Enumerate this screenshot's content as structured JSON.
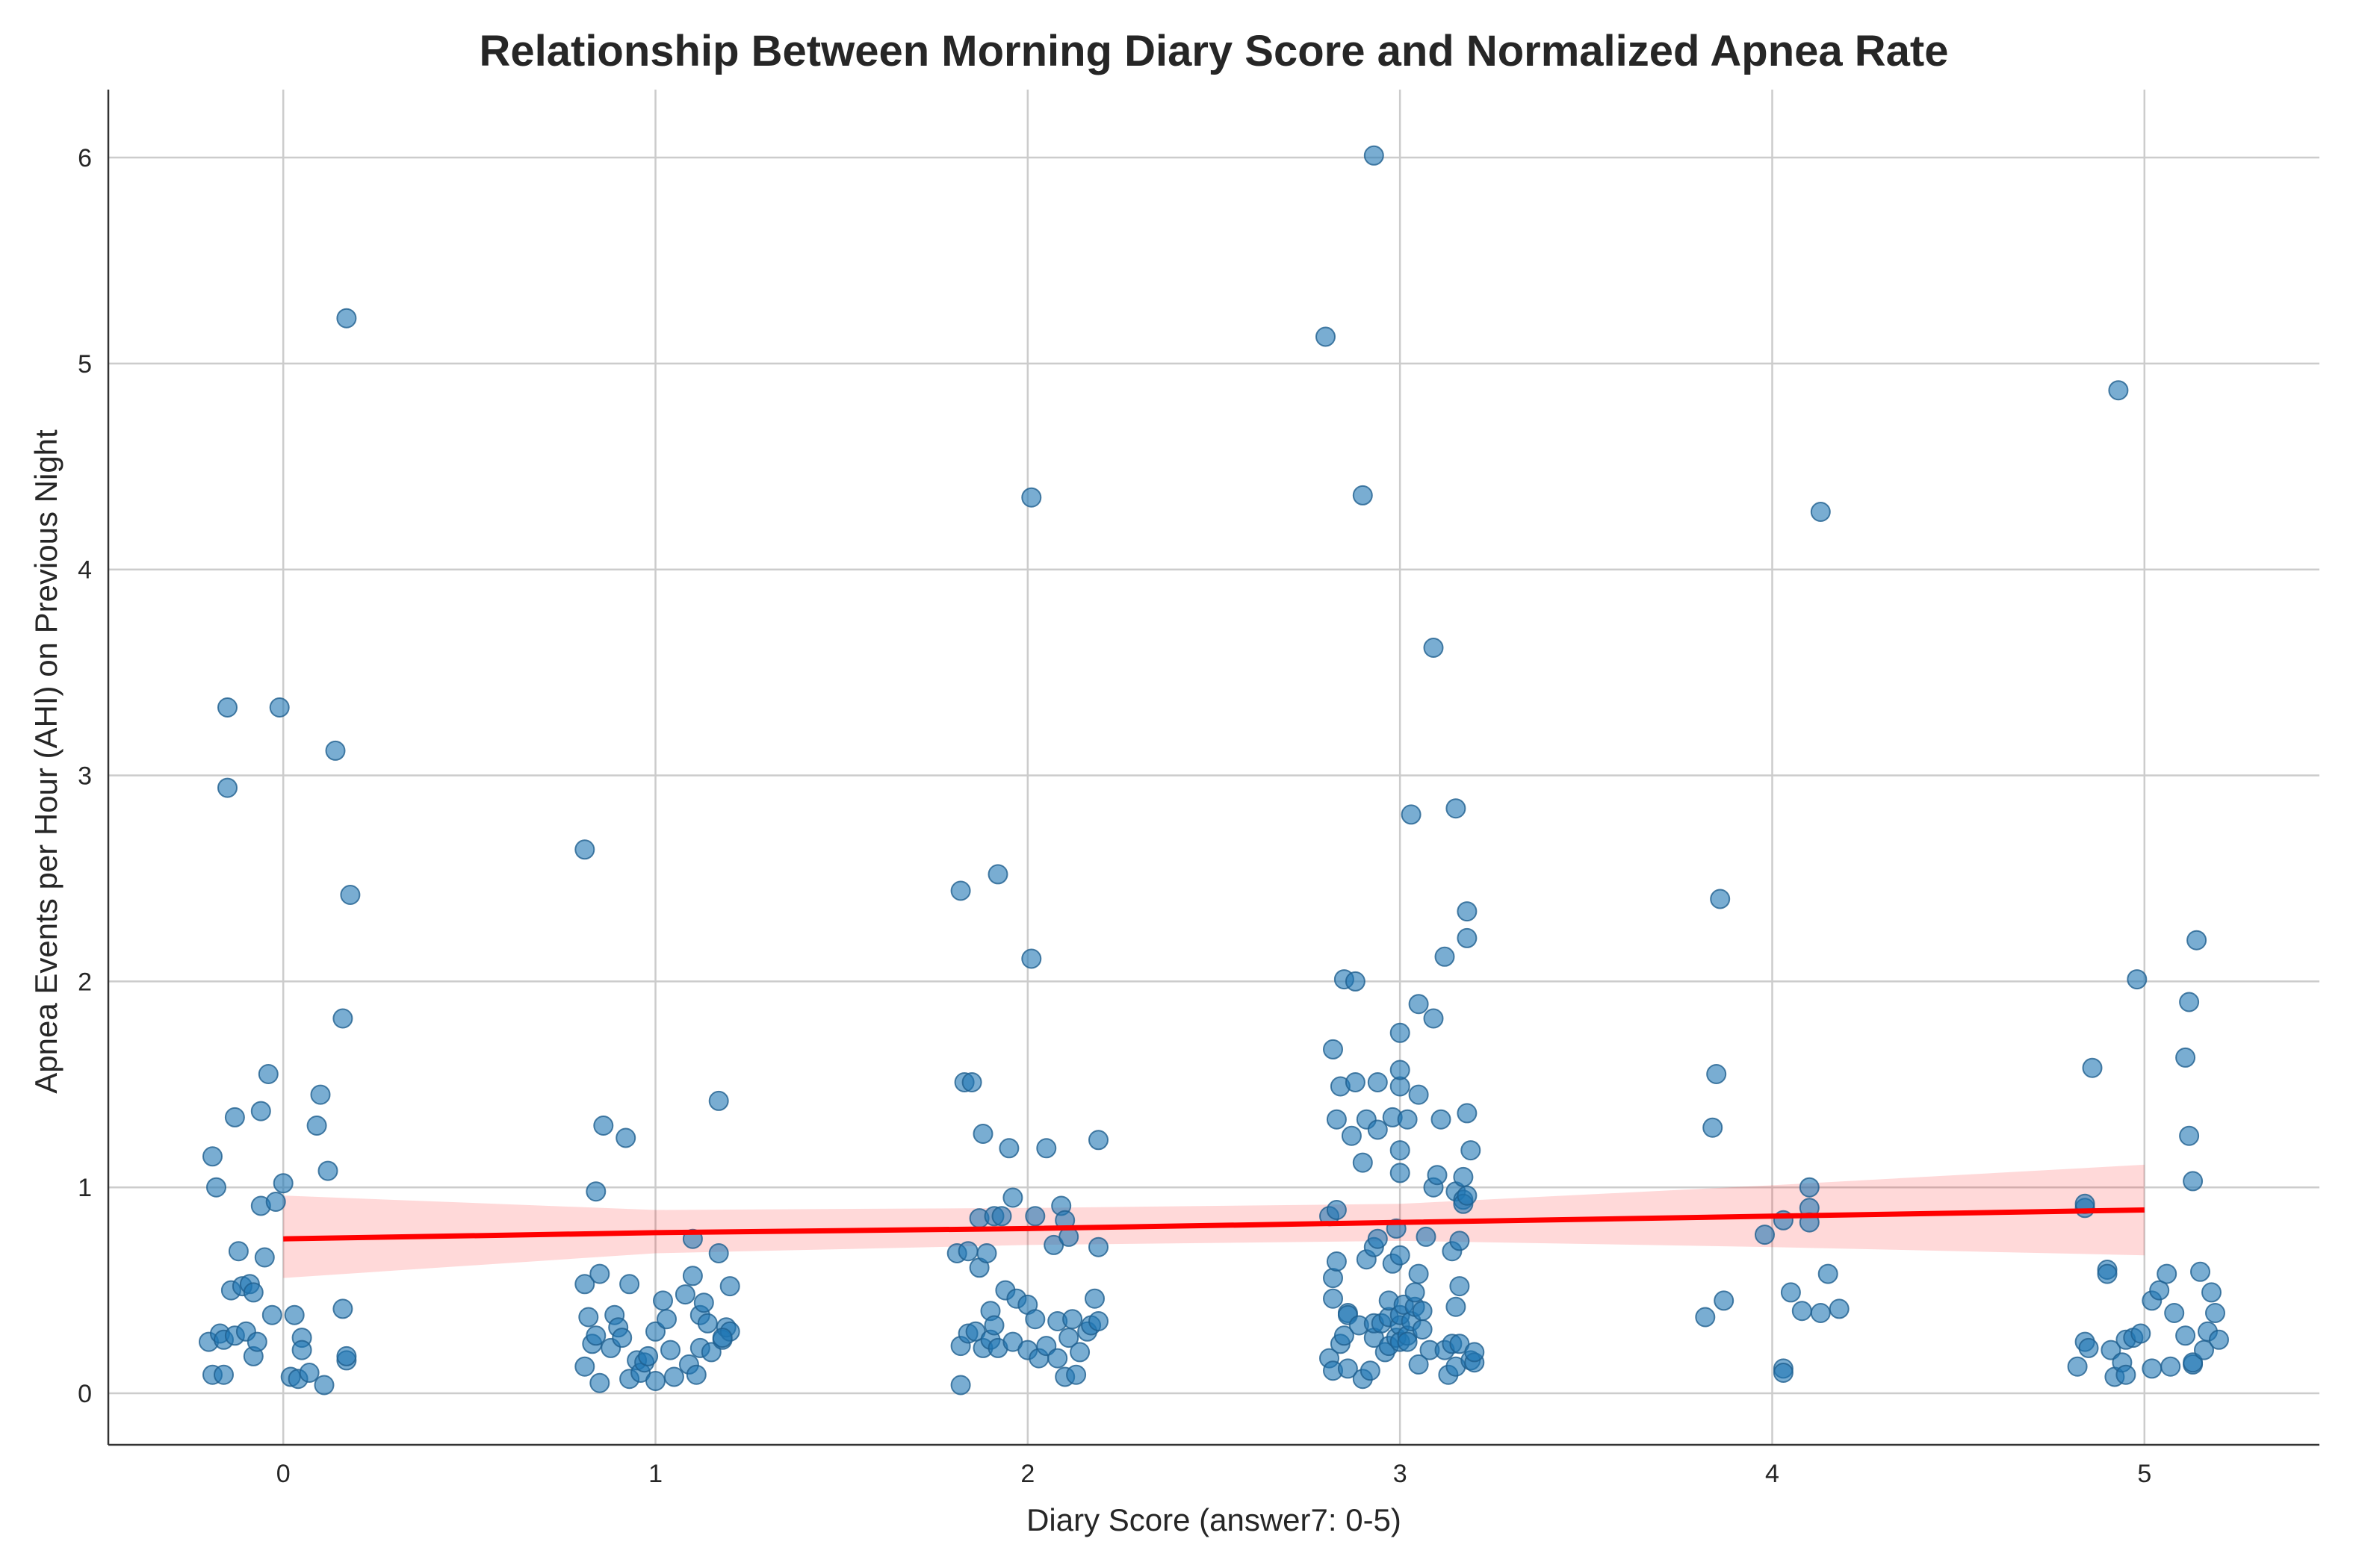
{
  "chart_data": {
    "type": "scatter",
    "title": "Relationship Between Morning Diary Score and Normalized Apnea Rate",
    "xlabel": "Diary Score (answer7: 0-5)",
    "ylabel": "Apnea Events per Hour (AHI) on Previous Night",
    "xlim": [
      -0.47,
      5.47
    ],
    "ylim": [
      -0.25,
      6.33
    ],
    "x_ticks": [
      "0",
      "1",
      "2",
      "3",
      "4",
      "5"
    ],
    "y_ticks": [
      "0",
      "1",
      "2",
      "3",
      "4",
      "5",
      "6"
    ],
    "grid": true,
    "colors": {
      "points": "#1f77b4",
      "regression": "#ff0000",
      "ci": "#ff0000"
    },
    "regression": {
      "x": [
        0,
        1,
        2,
        3,
        4,
        5
      ],
      "y": [
        0.75,
        0.78,
        0.8,
        0.83,
        0.86,
        0.89
      ],
      "ci_lower": [
        0.56,
        0.68,
        0.72,
        0.74,
        0.71,
        0.67
      ],
      "ci_upper": [
        0.96,
        0.89,
        0.9,
        0.92,
        1.01,
        1.11
      ]
    },
    "points": [
      [
        -0.2,
        0.25
      ],
      [
        -0.19,
        1.15
      ],
      [
        -0.18,
        1.0
      ],
      [
        -0.19,
        0.09
      ],
      [
        -0.17,
        0.29
      ],
      [
        -0.16,
        0.26
      ],
      [
        -0.16,
        0.09
      ],
      [
        -0.15,
        2.94
      ],
      [
        -0.15,
        3.33
      ],
      [
        -0.14,
        0.5
      ],
      [
        -0.13,
        1.34
      ],
      [
        -0.13,
        0.28
      ],
      [
        -0.12,
        0.69
      ],
      [
        -0.11,
        0.52
      ],
      [
        -0.1,
        0.3
      ],
      [
        -0.09,
        0.53
      ],
      [
        -0.08,
        0.49
      ],
      [
        -0.08,
        0.18
      ],
      [
        -0.07,
        0.25
      ],
      [
        -0.06,
        0.91
      ],
      [
        -0.06,
        1.37
      ],
      [
        -0.05,
        0.66
      ],
      [
        -0.04,
        1.55
      ],
      [
        -0.03,
        0.38
      ],
      [
        -0.02,
        0.93
      ],
      [
        -0.01,
        3.33
      ],
      [
        0.0,
        1.02
      ],
      [
        0.02,
        0.08
      ],
      [
        0.03,
        0.38
      ],
      [
        0.04,
        0.07
      ],
      [
        0.05,
        0.27
      ],
      [
        0.05,
        0.21
      ],
      [
        0.07,
        0.1
      ],
      [
        0.09,
        1.3
      ],
      [
        0.1,
        1.45
      ],
      [
        0.11,
        0.04
      ],
      [
        0.12,
        1.08
      ],
      [
        0.14,
        3.12
      ],
      [
        0.16,
        0.41
      ],
      [
        0.16,
        1.82
      ],
      [
        0.17,
        5.22
      ],
      [
        0.17,
        0.16
      ],
      [
        0.17,
        0.18
      ],
      [
        0.18,
        2.42
      ],
      [
        0.81,
        0.53
      ],
      [
        0.81,
        0.13
      ],
      [
        0.81,
        2.64
      ],
      [
        0.82,
        0.37
      ],
      [
        0.83,
        0.24
      ],
      [
        0.84,
        0.98
      ],
      [
        0.84,
        0.28
      ],
      [
        0.85,
        0.58
      ],
      [
        0.85,
        0.05
      ],
      [
        0.86,
        1.3
      ],
      [
        0.88,
        0.22
      ],
      [
        0.89,
        0.38
      ],
      [
        0.9,
        0.32
      ],
      [
        0.91,
        0.27
      ],
      [
        0.92,
        1.24
      ],
      [
        0.93,
        0.53
      ],
      [
        0.93,
        0.07
      ],
      [
        0.95,
        0.16
      ],
      [
        0.96,
        0.1
      ],
      [
        0.97,
        0.15
      ],
      [
        0.98,
        0.18
      ],
      [
        1.0,
        0.06
      ],
      [
        1.0,
        0.3
      ],
      [
        1.02,
        0.45
      ],
      [
        1.03,
        0.36
      ],
      [
        1.04,
        0.21
      ],
      [
        1.05,
        0.08
      ],
      [
        1.08,
        0.48
      ],
      [
        1.09,
        0.14
      ],
      [
        1.1,
        0.57
      ],
      [
        1.1,
        0.75
      ],
      [
        1.11,
        0.09
      ],
      [
        1.12,
        0.22
      ],
      [
        1.12,
        0.38
      ],
      [
        1.13,
        0.44
      ],
      [
        1.14,
        0.34
      ],
      [
        1.15,
        0.2
      ],
      [
        1.17,
        0.68
      ],
      [
        1.17,
        1.42
      ],
      [
        1.18,
        0.26
      ],
      [
        1.19,
        0.32
      ],
      [
        1.2,
        0.52
      ],
      [
        1.2,
        0.3
      ],
      [
        1.18,
        0.27
      ],
      [
        1.81,
        0.68
      ],
      [
        1.82,
        0.04
      ],
      [
        1.82,
        0.23
      ],
      [
        1.82,
        2.44
      ],
      [
        1.83,
        1.51
      ],
      [
        1.84,
        0.69
      ],
      [
        1.84,
        0.29
      ],
      [
        1.85,
        1.51
      ],
      [
        1.86,
        0.3
      ],
      [
        1.87,
        0.61
      ],
      [
        1.87,
        0.85
      ],
      [
        1.88,
        0.22
      ],
      [
        1.88,
        1.26
      ],
      [
        1.89,
        0.68
      ],
      [
        1.9,
        0.26
      ],
      [
        1.9,
        0.4
      ],
      [
        1.91,
        0.33
      ],
      [
        1.91,
        0.86
      ],
      [
        1.92,
        0.22
      ],
      [
        1.92,
        2.52
      ],
      [
        1.93,
        0.86
      ],
      [
        1.94,
        0.5
      ],
      [
        1.95,
        1.19
      ],
      [
        1.96,
        0.95
      ],
      [
        1.96,
        0.25
      ],
      [
        1.97,
        0.46
      ],
      [
        2.0,
        0.21
      ],
      [
        2.0,
        0.43
      ],
      [
        2.01,
        4.35
      ],
      [
        2.01,
        2.11
      ],
      [
        2.02,
        0.86
      ],
      [
        2.02,
        0.36
      ],
      [
        2.03,
        0.17
      ],
      [
        2.05,
        0.23
      ],
      [
        2.05,
        1.19
      ],
      [
        2.07,
        0.72
      ],
      [
        2.08,
        0.35
      ],
      [
        2.08,
        0.17
      ],
      [
        2.09,
        0.91
      ],
      [
        2.1,
        0.84
      ],
      [
        2.1,
        0.08
      ],
      [
        2.11,
        0.27
      ],
      [
        2.11,
        0.76
      ],
      [
        2.12,
        0.36
      ],
      [
        2.13,
        0.09
      ],
      [
        2.14,
        0.2
      ],
      [
        2.16,
        0.3
      ],
      [
        2.17,
        0.33
      ],
      [
        2.18,
        0.46
      ],
      [
        2.19,
        0.35
      ],
      [
        2.19,
        1.23
      ],
      [
        2.19,
        0.71
      ],
      [
        2.8,
        5.13
      ],
      [
        2.81,
        0.17
      ],
      [
        2.81,
        0.86
      ],
      [
        2.82,
        0.11
      ],
      [
        2.82,
        0.56
      ],
      [
        2.82,
        1.67
      ],
      [
        2.82,
        0.46
      ],
      [
        2.83,
        1.33
      ],
      [
        2.83,
        0.64
      ],
      [
        2.83,
        0.89
      ],
      [
        2.84,
        1.49
      ],
      [
        2.84,
        0.24
      ],
      [
        2.85,
        2.01
      ],
      [
        2.85,
        0.28
      ],
      [
        2.86,
        0.39
      ],
      [
        2.86,
        0.38
      ],
      [
        2.86,
        0.12
      ],
      [
        2.87,
        1.25
      ],
      [
        2.88,
        1.51
      ],
      [
        2.88,
        2.0
      ],
      [
        2.89,
        0.33
      ],
      [
        2.9,
        0.07
      ],
      [
        2.9,
        1.12
      ],
      [
        2.9,
        4.36
      ],
      [
        2.91,
        0.65
      ],
      [
        2.91,
        1.33
      ],
      [
        2.92,
        0.11
      ],
      [
        2.93,
        0.27
      ],
      [
        2.93,
        6.01
      ],
      [
        2.93,
        0.34
      ],
      [
        2.93,
        0.71
      ],
      [
        2.94,
        0.75
      ],
      [
        2.94,
        1.28
      ],
      [
        2.94,
        1.51
      ],
      [
        2.95,
        0.34
      ],
      [
        2.96,
        0.2
      ],
      [
        2.97,
        0.37
      ],
      [
        2.97,
        0.23
      ],
      [
        2.97,
        0.45
      ],
      [
        2.98,
        1.34
      ],
      [
        2.98,
        0.63
      ],
      [
        2.99,
        0.27
      ],
      [
        2.99,
        0.8
      ],
      [
        3.0,
        1.07
      ],
      [
        3.0,
        1.18
      ],
      [
        3.0,
        1.49
      ],
      [
        3.0,
        1.57
      ],
      [
        3.0,
        1.75
      ],
      [
        3.0,
        0.33
      ],
      [
        3.0,
        0.25
      ],
      [
        3.0,
        0.38
      ],
      [
        3.0,
        0.67
      ],
      [
        3.01,
        0.43
      ],
      [
        3.02,
        1.33
      ],
      [
        3.02,
        0.28
      ],
      [
        3.02,
        0.25
      ],
      [
        3.03,
        2.81
      ],
      [
        3.03,
        0.35
      ],
      [
        3.04,
        0.42
      ],
      [
        3.04,
        0.49
      ],
      [
        3.05,
        1.45
      ],
      [
        3.05,
        1.89
      ],
      [
        3.05,
        0.14
      ],
      [
        3.05,
        0.58
      ],
      [
        3.06,
        0.31
      ],
      [
        3.06,
        0.4
      ],
      [
        3.07,
        0.76
      ],
      [
        3.08,
        0.21
      ],
      [
        3.09,
        3.62
      ],
      [
        3.09,
        1.82
      ],
      [
        3.09,
        1.0
      ],
      [
        3.1,
        1.06
      ],
      [
        3.11,
        1.33
      ],
      [
        3.12,
        2.12
      ],
      [
        3.12,
        0.21
      ],
      [
        3.13,
        0.09
      ],
      [
        3.14,
        0.69
      ],
      [
        3.14,
        0.24
      ],
      [
        3.15,
        0.13
      ],
      [
        3.15,
        0.42
      ],
      [
        3.15,
        0.98
      ],
      [
        3.15,
        2.84
      ],
      [
        3.16,
        0.52
      ],
      [
        3.16,
        0.74
      ],
      [
        3.16,
        0.24
      ],
      [
        3.17,
        1.05
      ],
      [
        3.17,
        0.94
      ],
      [
        3.17,
        0.92
      ],
      [
        3.18,
        1.36
      ],
      [
        3.18,
        2.34
      ],
      [
        3.18,
        2.21
      ],
      [
        3.18,
        0.96
      ],
      [
        3.19,
        1.18
      ],
      [
        3.19,
        0.16
      ],
      [
        3.2,
        0.15
      ],
      [
        3.2,
        0.2
      ],
      [
        3.82,
        0.37
      ],
      [
        3.84,
        1.29
      ],
      [
        3.85,
        1.55
      ],
      [
        3.86,
        2.4
      ],
      [
        3.87,
        0.45
      ],
      [
        3.98,
        0.77
      ],
      [
        4.03,
        0.12
      ],
      [
        4.03,
        0.1
      ],
      [
        4.03,
        0.84
      ],
      [
        4.05,
        0.49
      ],
      [
        4.08,
        0.4
      ],
      [
        4.1,
        0.83
      ],
      [
        4.1,
        0.9
      ],
      [
        4.1,
        1.0
      ],
      [
        4.13,
        4.28
      ],
      [
        4.13,
        0.39
      ],
      [
        4.15,
        0.58
      ],
      [
        4.18,
        0.41
      ],
      [
        4.82,
        0.13
      ],
      [
        4.84,
        0.9
      ],
      [
        4.84,
        0.92
      ],
      [
        4.84,
        0.25
      ],
      [
        4.85,
        0.22
      ],
      [
        4.86,
        1.58
      ],
      [
        4.9,
        0.6
      ],
      [
        4.9,
        0.58
      ],
      [
        4.91,
        0.21
      ],
      [
        4.92,
        0.08
      ],
      [
        4.93,
        4.87
      ],
      [
        4.94,
        0.15
      ],
      [
        4.95,
        0.26
      ],
      [
        4.95,
        0.09
      ],
      [
        4.97,
        0.27
      ],
      [
        4.98,
        2.01
      ],
      [
        4.99,
        0.29
      ],
      [
        5.02,
        0.45
      ],
      [
        5.02,
        0.12
      ],
      [
        5.04,
        0.5
      ],
      [
        5.06,
        0.58
      ],
      [
        5.07,
        0.13
      ],
      [
        5.08,
        0.39
      ],
      [
        5.11,
        0.28
      ],
      [
        5.11,
        1.63
      ],
      [
        5.12,
        1.9
      ],
      [
        5.12,
        1.25
      ],
      [
        5.13,
        1.03
      ],
      [
        5.13,
        0.14
      ],
      [
        5.13,
        0.15
      ],
      [
        5.14,
        2.2
      ],
      [
        5.15,
        0.59
      ],
      [
        5.16,
        0.21
      ],
      [
        5.17,
        0.3
      ],
      [
        5.18,
        0.49
      ],
      [
        5.19,
        0.39
      ],
      [
        5.2,
        0.26
      ]
    ]
  }
}
